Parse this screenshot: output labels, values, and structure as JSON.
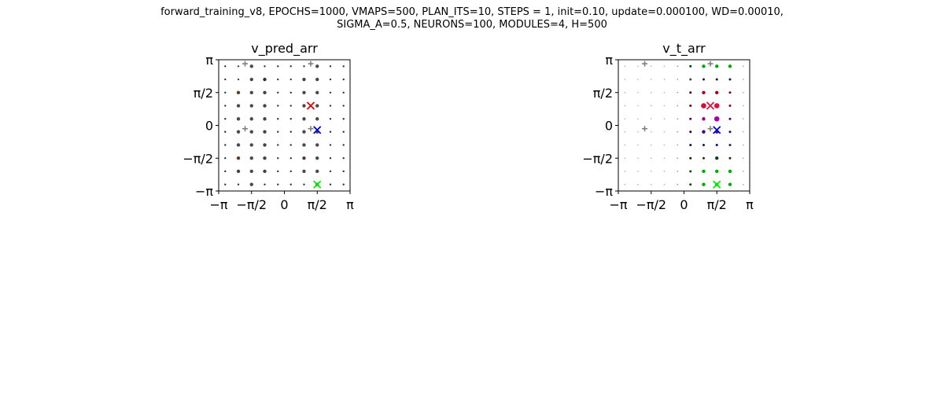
{
  "suptitle": {
    "line1": "forward_training_v8, EPOCHS=1000, VMAPS=500, PLAN_ITS=10, STEPS = 1, init=0.10, update=0.000100, WD=0.00010,",
    "line2": "SIGMA_A=0.5, NEURONS=100, MODULES=4, H=500"
  },
  "tick_labels": [
    "−π",
    "−π/2",
    "0",
    "π/2",
    "π"
  ],
  "colors": {
    "axes": "#000000",
    "plus_marker": "#808080",
    "marker_red": "#e00000",
    "marker_crimson": "#dc143c",
    "marker_blue": "#0000dd",
    "marker_green": "#00ee00"
  },
  "chart_data": [
    {
      "type": "scatter",
      "title": "v_pred_arr",
      "xlim": [
        -3.1416,
        3.1416
      ],
      "ylim": [
        -3.1416,
        3.1416
      ],
      "xticks": [
        "−π",
        "−π/2",
        "0",
        "π/2",
        "π"
      ],
      "yticks": [
        "−π",
        "−π/2",
        "0",
        "π/2",
        "π"
      ],
      "grid": false,
      "grid_coords": [
        -2.83,
        -2.2,
        -1.57,
        -0.94,
        -0.31,
        0.31,
        0.94,
        1.57,
        2.2,
        2.83
      ],
      "point_size_levels": [
        "small",
        "medium"
      ],
      "point_sizes": [
        [
          0,
          0,
          1,
          0,
          0,
          0,
          0,
          1,
          0,
          0
        ],
        [
          0,
          0,
          1,
          1,
          0,
          0,
          1,
          1,
          0,
          0
        ],
        [
          0,
          1,
          1,
          1,
          0,
          0,
          1,
          1,
          0,
          0
        ],
        [
          0,
          1,
          1,
          1,
          0,
          0,
          1,
          1,
          0,
          0
        ],
        [
          0,
          1,
          1,
          1,
          0,
          0,
          1,
          1,
          0,
          0
        ],
        [
          0,
          1,
          1,
          1,
          0,
          0,
          1,
          1,
          0,
          0
        ],
        [
          0,
          1,
          1,
          1,
          0,
          0,
          1,
          1,
          0,
          0
        ],
        [
          0,
          1,
          1,
          1,
          0,
          0,
          1,
          1,
          0,
          0
        ],
        [
          0,
          1,
          1,
          1,
          0,
          0,
          1,
          1,
          0,
          0
        ],
        [
          0,
          0,
          1,
          0,
          0,
          0,
          0,
          1,
          0,
          0
        ]
      ],
      "point_colors": [
        [
          "#333333",
          "#444444",
          "#4a4a4a",
          "#333333",
          "#333333",
          "#333333",
          "#333333",
          "#4a4a4a",
          "#333333",
          "#333333"
        ],
        [
          "#333333",
          "#444444",
          "#4a4a4a",
          "#333333",
          "#333333",
          "#333333",
          "#444444",
          "#4a4a4a",
          "#333333",
          "#333333"
        ],
        [
          "#333333",
          "#5a3a2a",
          "#4a4a4a",
          "#444444",
          "#333333",
          "#333333",
          "#4a4a4a",
          "#4a4a4a",
          "#333333",
          "#333333"
        ],
        [
          "#333333",
          "#4a4a4a",
          "#4a4a4a",
          "#444444",
          "#333333",
          "#333333",
          "#4a4a4a",
          "#4a4a4a",
          "#333333",
          "#333333"
        ],
        [
          "#333333",
          "#4a4a4a",
          "#4a4a4a",
          "#444444",
          "#333333",
          "#333333",
          "#4a4a4a",
          "#4a4a4a",
          "#333333",
          "#333333"
        ],
        [
          "#333333",
          "#4a4a4a",
          "#4a4a4a",
          "#444444",
          "#333333",
          "#333333",
          "#4a4a4a",
          "#4a4a4a",
          "#333333",
          "#333333"
        ],
        [
          "#333333",
          "#4a4a4a",
          "#4a4a4a",
          "#444444",
          "#333333",
          "#333333",
          "#4a4a4a",
          "#4a4a4a",
          "#333333",
          "#333333"
        ],
        [
          "#333333",
          "#5a3a2a",
          "#4a4a4a",
          "#444444",
          "#333333",
          "#333333",
          "#5a3a2a",
          "#4a4a4a",
          "#333333",
          "#333333"
        ],
        [
          "#333333",
          "#444444",
          "#4a4a4a",
          "#444444",
          "#333333",
          "#333333",
          "#4a4a4a",
          "#4a4a4a",
          "#333333",
          "#333333"
        ],
        [
          "#333333",
          "#333333",
          "#4a4a4a",
          "#333333",
          "#333333",
          "#333333",
          "#333333",
          "#4a4a4a",
          "#333333",
          "#333333"
        ]
      ],
      "plus_markers": [
        [
          -1.88,
          2.95
        ],
        [
          1.26,
          2.95
        ],
        [
          -1.88,
          -0.16
        ],
        [
          1.26,
          -0.16
        ]
      ],
      "x_markers": [
        {
          "x": 1.26,
          "y": 0.94,
          "color": "#e00000"
        },
        {
          "x": 1.57,
          "y": -0.22,
          "color": "#0000dd"
        },
        {
          "x": 1.57,
          "y": -2.83,
          "color": "#00ee00"
        }
      ]
    },
    {
      "type": "scatter",
      "title": "v_t_arr",
      "xlim": [
        -3.1416,
        3.1416
      ],
      "ylim": [
        -3.1416,
        3.1416
      ],
      "xticks": [
        "−π",
        "−π/2",
        "0",
        "π/2",
        "π"
      ],
      "yticks": [
        "−π",
        "−π/2",
        "0",
        "π/2",
        "π"
      ],
      "grid": false,
      "grid_coords": [
        -2.83,
        -2.2,
        -1.57,
        -0.94,
        -0.31,
        0.31,
        0.94,
        1.57,
        2.2,
        2.83
      ],
      "point_size_levels": [
        "tiny",
        "small",
        "medium",
        "large"
      ],
      "point_sizes": [
        [
          0,
          0,
          0,
          0,
          0,
          1,
          2,
          2,
          2,
          0
        ],
        [
          0,
          0,
          0,
          0,
          0,
          1,
          1,
          1,
          1,
          0
        ],
        [
          0,
          0,
          0,
          0,
          0,
          1,
          2,
          2,
          1,
          0
        ],
        [
          0,
          0,
          0,
          0,
          0,
          1,
          3,
          3,
          1,
          0
        ],
        [
          0,
          0,
          0,
          0,
          0,
          1,
          2,
          3,
          1,
          0
        ],
        [
          0,
          0,
          0,
          0,
          0,
          1,
          2,
          2,
          1,
          0
        ],
        [
          0,
          0,
          0,
          0,
          0,
          1,
          1,
          1,
          1,
          0
        ],
        [
          0,
          0,
          0,
          0,
          0,
          1,
          1,
          2,
          1,
          0
        ],
        [
          0,
          0,
          0,
          0,
          0,
          1,
          2,
          2,
          2,
          0
        ],
        [
          0,
          0,
          0,
          0,
          0,
          1,
          2,
          2,
          2,
          0
        ]
      ],
      "point_colors": [
        [
          "#bbbbbb",
          "#bbbbbb",
          "#bbbbbb",
          "#bbbbbb",
          "#999999",
          "#004400",
          "#00aa00",
          "#00aa00",
          "#00aa00",
          "#aaaaaa"
        ],
        [
          "#bbbbbb",
          "#bbbbbb",
          "#bbbbbb",
          "#bbbbbb",
          "#999999",
          "#444444",
          "#222222",
          "#222222",
          "#222222",
          "#aaaaaa"
        ],
        [
          "#bbbbbb",
          "#bbbbbb",
          "#bbbbbb",
          "#bbbbbb",
          "#999999",
          "#550000",
          "#aa0022",
          "#aa0022",
          "#770022",
          "#aaaaaa"
        ],
        [
          "#bbbbbb",
          "#bbbbbb",
          "#bbbbbb",
          "#bbbbbb",
          "#999999",
          "#770000",
          "#cc1133",
          "#dd1144",
          "#880033",
          "#aaaaaa"
        ],
        [
          "#bbbbbb",
          "#bbbbbb",
          "#bbbbbb",
          "#bbbbbb",
          "#999999",
          "#660044",
          "#aa0077",
          "#aa00aa",
          "#550066",
          "#aaaaaa"
        ],
        [
          "#bbbbbb",
          "#bbbbbb",
          "#bbbbbb",
          "#bbbbbb",
          "#999999",
          "#220044",
          "#440088",
          "#5500aa",
          "#330077",
          "#aaaaaa"
        ],
        [
          "#bbbbbb",
          "#bbbbbb",
          "#bbbbbb",
          "#bbbbbb",
          "#999999",
          "#111144",
          "#111166",
          "#0000aa",
          "#222266",
          "#aaaaaa"
        ],
        [
          "#bbbbbb",
          "#bbbbbb",
          "#bbbbbb",
          "#bbbbbb",
          "#999999",
          "#112211",
          "#113311",
          "#114411",
          "#113311",
          "#aaaaaa"
        ],
        [
          "#bbbbbb",
          "#bbbbbb",
          "#bbbbbb",
          "#bbbbbb",
          "#999999",
          "#005500",
          "#00aa00",
          "#00aa00",
          "#00aa00",
          "#aaaaaa"
        ],
        [
          "#bbbbbb",
          "#bbbbbb",
          "#bbbbbb",
          "#bbbbbb",
          "#999999",
          "#005500",
          "#00aa00",
          "#00aa00",
          "#00aa00",
          "#aaaaaa"
        ]
      ],
      "plus_markers": [
        [
          -1.88,
          2.95
        ],
        [
          1.26,
          2.95
        ],
        [
          -1.88,
          -0.16
        ],
        [
          1.26,
          -0.16
        ]
      ],
      "x_markers": [
        {
          "x": 1.26,
          "y": 0.94,
          "color": "#dc143c"
        },
        {
          "x": 1.57,
          "y": -0.22,
          "color": "#0000dd"
        },
        {
          "x": 1.57,
          "y": -2.83,
          "color": "#00ee00"
        }
      ]
    }
  ]
}
